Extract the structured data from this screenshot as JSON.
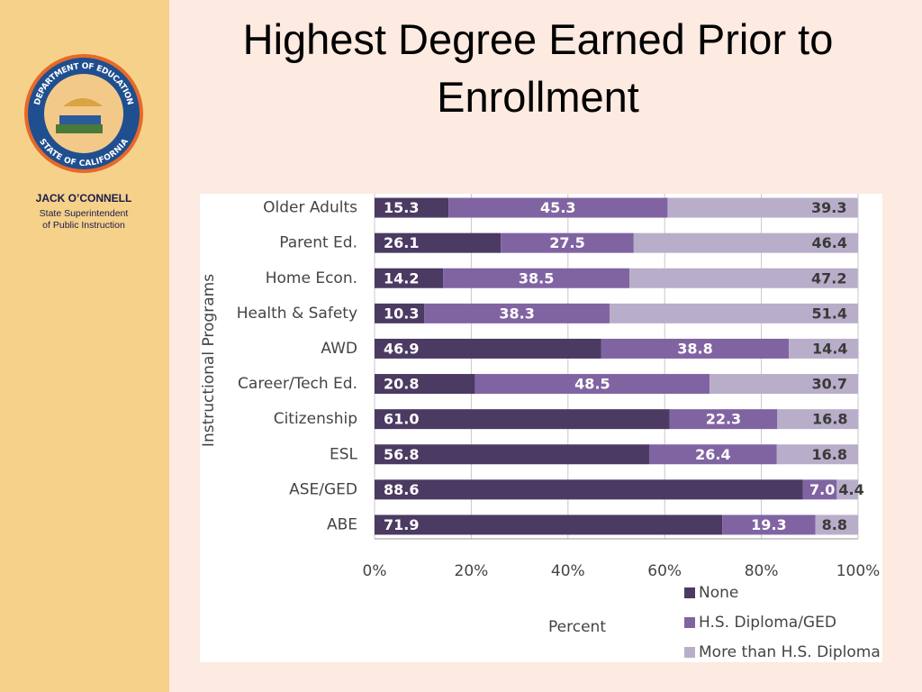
{
  "sidebar": {
    "logo_top": "DEPARTMENT OF EDUCATION",
    "logo_bottom": "STATE OF CALIFORNIA",
    "name": "JACK O’CONNELL",
    "role_line1": "State Superintendent",
    "role_line2": "of Public Instruction"
  },
  "chart_data": {
    "type": "stacked-barh",
    "title": "Highest Degree Earned Prior to Enrollment",
    "xlabel": "Percent",
    "ylabel": "Instructional Programs",
    "categories": [
      "Older Adults",
      "Parent Ed.",
      "Home Econ.",
      "Health & Safety",
      "AWD",
      "Career/Tech Ed.",
      "Citizenship",
      "ESL",
      "ASE/GED",
      "ABE"
    ],
    "series": [
      {
        "name": "None",
        "color": "#4b3a62",
        "values": [
          15.3,
          26.1,
          14.2,
          10.3,
          46.9,
          20.8,
          61.0,
          56.8,
          88.6,
          71.9
        ],
        "value_labels": [
          "15.3",
          "26.1",
          "14.2",
          "10.3",
          "46.9",
          "20.8",
          "61.0",
          "56.8",
          "88.6",
          "71.9"
        ]
      },
      {
        "name": "H.S. Diploma/GED",
        "color": "#8064a2",
        "values": [
          45.3,
          27.5,
          38.5,
          38.3,
          38.8,
          48.5,
          22.3,
          26.4,
          7.0,
          19.3
        ],
        "value_labels": [
          "45.3",
          "27.5",
          "38.5",
          "38.3",
          "38.8",
          "48.5",
          "22.3",
          "26.4",
          "7.0",
          "19.3"
        ]
      },
      {
        "name": "More than H.S. Diploma",
        "color": "#b9aec9",
        "values": [
          39.3,
          46.4,
          47.2,
          51.4,
          14.4,
          30.7,
          16.8,
          16.8,
          4.4,
          8.8
        ],
        "value_labels": [
          "39.3",
          "46.4",
          "47.2",
          "51.4",
          "14.4",
          "30.7",
          "16.8",
          "16.8",
          "4.4",
          "8.8"
        ]
      }
    ],
    "xlim": [
      0,
      100
    ],
    "xticks": [
      {
        "value": 0,
        "label": "0%"
      },
      {
        "value": 20,
        "label": "20%"
      },
      {
        "value": 40,
        "label": "40%"
      },
      {
        "value": 60,
        "label": "60%"
      },
      {
        "value": 80,
        "label": "80%"
      },
      {
        "value": 100,
        "label": "100%"
      }
    ],
    "grid": true
  }
}
